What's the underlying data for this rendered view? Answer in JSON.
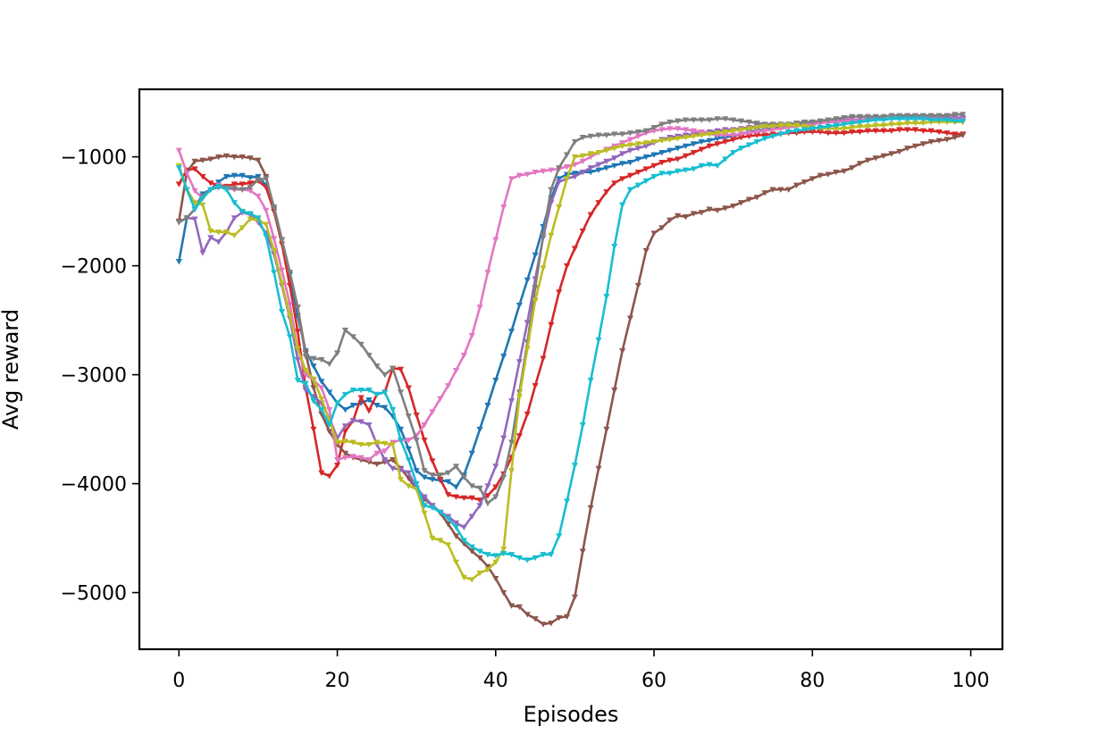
{
  "chart_data": {
    "type": "line",
    "title": "",
    "xlabel": "Episodes",
    "ylabel": "Avg reward",
    "xlim": [
      -5,
      104
    ],
    "ylim": [
      -5520,
      -380
    ],
    "x_ticks": [
      0,
      20,
      40,
      60,
      80,
      100
    ],
    "y_ticks": [
      -5000,
      -4000,
      -3000,
      -2000,
      -1000
    ],
    "x_tick_labels": [
      "0",
      "20",
      "40",
      "60",
      "80",
      "100"
    ],
    "y_tick_labels": [
      "−5000",
      "−4000",
      "−3000",
      "−2000",
      "−1000"
    ],
    "grid": false,
    "legend": "none",
    "marker": "triangle-down",
    "x": [
      0,
      1,
      2,
      3,
      4,
      5,
      6,
      7,
      8,
      9,
      10,
      11,
      12,
      13,
      14,
      15,
      16,
      17,
      18,
      19,
      20,
      21,
      22,
      23,
      24,
      25,
      26,
      27,
      28,
      29,
      30,
      31,
      32,
      33,
      34,
      35,
      36,
      37,
      38,
      39,
      40,
      41,
      42,
      43,
      44,
      45,
      46,
      47,
      48,
      49,
      50,
      51,
      52,
      53,
      54,
      55,
      56,
      57,
      58,
      59,
      60,
      61,
      62,
      63,
      64,
      65,
      66,
      67,
      68,
      69,
      70,
      71,
      72,
      73,
      74,
      75,
      76,
      77,
      78,
      79,
      80,
      81,
      82,
      83,
      84,
      85,
      86,
      87,
      88,
      89,
      90,
      91,
      92,
      93,
      94,
      95,
      96,
      97,
      98,
      99
    ],
    "series": [
      {
        "color": "#1f77b4",
        "values": [
          -1960,
          -1560,
          -1480,
          -1340,
          -1300,
          -1230,
          -1180,
          -1170,
          -1170,
          -1190,
          -1180,
          -1260,
          -1460,
          -1760,
          -2080,
          -2460,
          -2780,
          -2920,
          -3060,
          -3160,
          -3260,
          -3320,
          -3280,
          -3260,
          -3230,
          -3280,
          -3300,
          -3380,
          -3500,
          -3680,
          -3880,
          -3940,
          -3960,
          -3970,
          -3980,
          -4030,
          -3920,
          -3720,
          -3500,
          -3280,
          -3050,
          -2830,
          -2600,
          -2360,
          -2130,
          -1900,
          -1640,
          -1380,
          -1200,
          -1160,
          -1150,
          -1140,
          -1140,
          -1120,
          -1100,
          -1080,
          -1060,
          -1050,
          -1020,
          -1000,
          -980,
          -960,
          -940,
          -920,
          -900,
          -880,
          -860,
          -850,
          -830,
          -820,
          -810,
          -790,
          -770,
          -760,
          -750,
          -740,
          -730,
          -720,
          -710,
          -700,
          -700,
          -690,
          -680,
          -680,
          -670,
          -670,
          -660,
          -660,
          -650,
          -650,
          -650,
          -640,
          -640,
          -640,
          -650,
          -650,
          -660,
          -660,
          -660,
          -650
        ]
      },
      {
        "color": "#d62728",
        "values": [
          -1250,
          -1120,
          -1110,
          -1180,
          -1240,
          -1260,
          -1270,
          -1250,
          -1250,
          -1240,
          -1220,
          -1280,
          -1500,
          -1800,
          -2180,
          -2600,
          -3120,
          -3500,
          -3900,
          -3930,
          -3830,
          -3520,
          -3420,
          -3210,
          -3330,
          -3180,
          -3160,
          -2940,
          -2950,
          -3120,
          -3370,
          -3600,
          -3790,
          -3960,
          -4100,
          -4120,
          -4130,
          -4130,
          -4150,
          -4110,
          -4030,
          -3910,
          -3760,
          -3560,
          -3360,
          -3100,
          -2850,
          -2540,
          -2240,
          -2000,
          -1840,
          -1680,
          -1530,
          -1420,
          -1320,
          -1240,
          -1200,
          -1170,
          -1140,
          -1110,
          -1080,
          -1050,
          -1030,
          -1020,
          -990,
          -960,
          -930,
          -900,
          -880,
          -860,
          -840,
          -820,
          -810,
          -800,
          -800,
          -790,
          -790,
          -780,
          -780,
          -770,
          -770,
          -770,
          -780,
          -780,
          -780,
          -770,
          -770,
          -760,
          -760,
          -760,
          -760,
          -750,
          -750,
          -750,
          -760,
          -760,
          -770,
          -780,
          -790,
          -790
        ]
      },
      {
        "color": "#8c564b",
        "values": [
          -1590,
          -1140,
          -1040,
          -1030,
          -1020,
          -1000,
          -990,
          -1000,
          -1000,
          -1010,
          -1030,
          -1180,
          -1480,
          -1760,
          -2060,
          -2380,
          -2800,
          -3120,
          -3360,
          -3520,
          -3640,
          -3720,
          -3760,
          -3780,
          -3800,
          -3820,
          -3800,
          -3780,
          -3860,
          -3950,
          -4050,
          -4140,
          -4200,
          -4270,
          -4370,
          -4480,
          -4550,
          -4620,
          -4680,
          -4760,
          -4870,
          -5000,
          -5120,
          -5130,
          -5200,
          -5240,
          -5290,
          -5280,
          -5230,
          -5220,
          -5040,
          -4620,
          -4220,
          -3860,
          -3500,
          -3140,
          -2780,
          -2480,
          -2180,
          -1860,
          -1700,
          -1650,
          -1580,
          -1540,
          -1550,
          -1520,
          -1510,
          -1480,
          -1490,
          -1470,
          -1450,
          -1420,
          -1390,
          -1370,
          -1330,
          -1300,
          -1300,
          -1300,
          -1260,
          -1230,
          -1200,
          -1170,
          -1160,
          -1140,
          -1130,
          -1100,
          -1060,
          -1030,
          -1010,
          -990,
          -970,
          -950,
          -920,
          -900,
          -880,
          -860,
          -850,
          -840,
          -820,
          -800
        ]
      },
      {
        "color": "#9467bd",
        "values": [
          -1600,
          -1560,
          -1570,
          -1880,
          -1740,
          -1780,
          -1690,
          -1560,
          -1510,
          -1530,
          -1600,
          -1700,
          -1890,
          -2180,
          -2480,
          -2860,
          -3140,
          -3200,
          -3260,
          -3400,
          -3580,
          -3470,
          -3420,
          -3430,
          -3460,
          -3640,
          -3780,
          -3860,
          -3870,
          -3900,
          -4040,
          -4120,
          -4200,
          -4260,
          -4300,
          -4360,
          -4400,
          -4300,
          -4200,
          -4020,
          -3840,
          -3580,
          -3240,
          -2880,
          -2520,
          -2120,
          -1740,
          -1420,
          -1230,
          -1200,
          -1180,
          -1140,
          -1100,
          -1070,
          -1040,
          -1010,
          -970,
          -940,
          -920,
          -900,
          -870,
          -840,
          -820,
          -810,
          -800,
          -790,
          -780,
          -770,
          -760,
          -750,
          -750,
          -740,
          -730,
          -720,
          -720,
          -710,
          -700,
          -700,
          -690,
          -690,
          -680,
          -680,
          -670,
          -670,
          -660,
          -660,
          -660,
          -650,
          -650,
          -650,
          -650,
          -640,
          -640,
          -640,
          -640,
          -640,
          -640,
          -640,
          -640,
          -640
        ]
      },
      {
        "color": "#e377c2",
        "values": [
          -940,
          -1150,
          -1310,
          -1380,
          -1300,
          -1260,
          -1290,
          -1300,
          -1300,
          -1310,
          -1360,
          -1490,
          -1750,
          -2040,
          -2350,
          -2760,
          -3000,
          -3050,
          -3120,
          -3320,
          -3780,
          -3760,
          -3750,
          -3760,
          -3780,
          -3720,
          -3700,
          -3620,
          -3600,
          -3600,
          -3560,
          -3460,
          -3340,
          -3220,
          -3100,
          -2960,
          -2820,
          -2640,
          -2380,
          -2060,
          -1760,
          -1460,
          -1200,
          -1170,
          -1160,
          -1140,
          -1130,
          -1120,
          -1110,
          -1090,
          -1070,
          -1040,
          -1000,
          -960,
          -930,
          -900,
          -870,
          -840,
          -810,
          -780,
          -760,
          -750,
          -740,
          -740,
          -750,
          -760,
          -770,
          -790,
          -800,
          -800,
          -800,
          -790,
          -780,
          -770,
          -760,
          -750,
          -740,
          -730,
          -720,
          -710,
          -700,
          -690,
          -680,
          -680,
          -670,
          -670,
          -660,
          -660,
          -660,
          -650,
          -650,
          -650,
          -650,
          -650,
          -650,
          -650,
          -650,
          -660,
          -660,
          -660
        ]
      },
      {
        "color": "#7f7f7f",
        "values": [
          -1600,
          -1560,
          -1480,
          -1360,
          -1300,
          -1280,
          -1280,
          -1290,
          -1300,
          -1280,
          -1210,
          -1200,
          -1460,
          -1760,
          -2060,
          -2380,
          -2830,
          -2850,
          -2860,
          -2900,
          -2800,
          -2590,
          -2650,
          -2720,
          -2820,
          -2920,
          -3000,
          -2940,
          -3160,
          -3380,
          -3600,
          -3880,
          -3920,
          -3920,
          -3900,
          -3840,
          -3940,
          -4020,
          -4040,
          -4180,
          -4120,
          -3940,
          -3620,
          -3160,
          -2700,
          -2200,
          -1720,
          -1300,
          -1100,
          -980,
          -860,
          -820,
          -810,
          -800,
          -800,
          -790,
          -790,
          -780,
          -770,
          -760,
          -730,
          -700,
          -680,
          -670,
          -660,
          -660,
          -660,
          -660,
          -650,
          -650,
          -660,
          -670,
          -680,
          -690,
          -700,
          -700,
          -700,
          -700,
          -690,
          -680,
          -680,
          -670,
          -660,
          -650,
          -640,
          -630,
          -630,
          -630,
          -630,
          -630,
          -620,
          -620,
          -620,
          -620,
          -620,
          -620,
          -620,
          -620,
          -610,
          -610
        ]
      },
      {
        "color": "#bcbd22",
        "values": [
          -1080,
          -1300,
          -1420,
          -1440,
          -1680,
          -1690,
          -1690,
          -1720,
          -1650,
          -1570,
          -1580,
          -1620,
          -1860,
          -2160,
          -2460,
          -2760,
          -2960,
          -3040,
          -3220,
          -3420,
          -3620,
          -3610,
          -3620,
          -3640,
          -3640,
          -3620,
          -3630,
          -3640,
          -3960,
          -4020,
          -4050,
          -4270,
          -4500,
          -4520,
          -4560,
          -4720,
          -4860,
          -4880,
          -4820,
          -4790,
          -4720,
          -4600,
          -3880,
          -3200,
          -2760,
          -2320,
          -2020,
          -1720,
          -1460,
          -1200,
          -1000,
          -990,
          -970,
          -960,
          -940,
          -920,
          -900,
          -890,
          -880,
          -870,
          -860,
          -850,
          -840,
          -830,
          -820,
          -810,
          -800,
          -790,
          -780,
          -770,
          -760,
          -750,
          -740,
          -730,
          -720,
          -720,
          -710,
          -710,
          -710,
          -720,
          -730,
          -740,
          -740,
          -740,
          -740,
          -730,
          -720,
          -720,
          -710,
          -710,
          -700,
          -700,
          -690,
          -690,
          -690,
          -680,
          -680,
          -680,
          -680,
          -680
        ]
      },
      {
        "color": "#17becf",
        "values": [
          -1100,
          -1300,
          -1480,
          -1380,
          -1300,
          -1270,
          -1300,
          -1420,
          -1500,
          -1520,
          -1560,
          -1730,
          -2060,
          -2420,
          -2650,
          -3050,
          -3080,
          -3240,
          -3320,
          -3460,
          -3260,
          -3180,
          -3140,
          -3140,
          -3140,
          -3180,
          -3160,
          -3320,
          -3600,
          -3780,
          -4000,
          -4200,
          -4220,
          -4260,
          -4320,
          -4400,
          -4520,
          -4580,
          -4620,
          -4650,
          -4660,
          -4640,
          -4650,
          -4680,
          -4700,
          -4680,
          -4650,
          -4650,
          -4480,
          -4160,
          -3830,
          -3460,
          -3050,
          -2680,
          -2280,
          -1820,
          -1440,
          -1300,
          -1260,
          -1220,
          -1180,
          -1150,
          -1150,
          -1130,
          -1120,
          -1110,
          -1080,
          -1070,
          -1080,
          -1020,
          -960,
          -920,
          -890,
          -860,
          -830,
          -810,
          -790,
          -770,
          -760,
          -750,
          -740,
          -730,
          -720,
          -710,
          -700,
          -690,
          -680,
          -670,
          -660,
          -660,
          -650,
          -650,
          -650,
          -650,
          -650,
          -660,
          -660,
          -660,
          -670,
          -670
        ]
      }
    ]
  }
}
